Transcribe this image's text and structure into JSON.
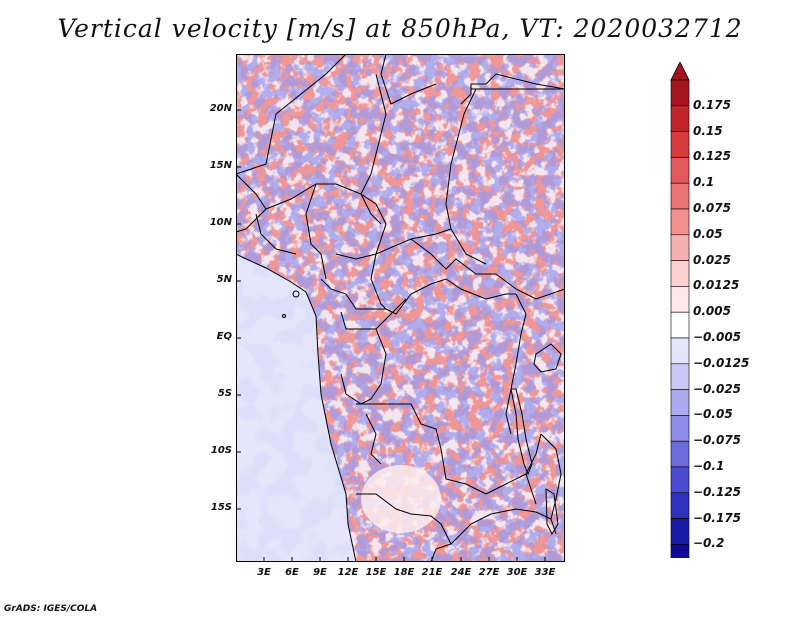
{
  "title": "Vertical velocity [m/s] at 850hPa, VT: 2020032712",
  "footer": "GrADS: IGES/COLA",
  "map": {
    "type": "filled-contour field",
    "variable": "Vertical velocity",
    "units": "m/s",
    "level": "850hPa",
    "valid_time": "2020032712",
    "lon_range": [
      0,
      35
    ],
    "lat_range": [
      -20,
      24
    ],
    "lat_ticks": [
      "20N",
      "15N",
      "10N",
      "5N",
      "EQ",
      "5S",
      "10S",
      "15S"
    ],
    "lon_ticks": [
      "3E",
      "6E",
      "9E",
      "12E",
      "15E",
      "18E",
      "21E",
      "24E",
      "27E",
      "30E",
      "33E"
    ]
  },
  "colorbar": {
    "labels": [
      "0.175",
      "0.15",
      "0.125",
      "0.1",
      "0.075",
      "0.05",
      "0.025",
      "0.0125",
      "0.005",
      "−0.005",
      "−0.0125",
      "−0.025",
      "−0.05",
      "−0.075",
      "−0.1",
      "−0.125",
      "−0.175",
      "−0.2"
    ],
    "colors": [
      "#a5141c",
      "#c3232a",
      "#d63c3c",
      "#e2585a",
      "#eb7474",
      "#f29090",
      "#f7b0b0",
      "#fbd0d0",
      "#fee8e8",
      "#ffffff",
      "#e4e4fb",
      "#c9c8f6",
      "#ababf0",
      "#8c8ce6",
      "#6c6cdc",
      "#4c4cd0",
      "#3030c0",
      "#1a1aa8",
      "#0e0c8c"
    ],
    "top_arrow_color": "#a5141c",
    "bottom_arrow_color": "#0e0c8c"
  }
}
